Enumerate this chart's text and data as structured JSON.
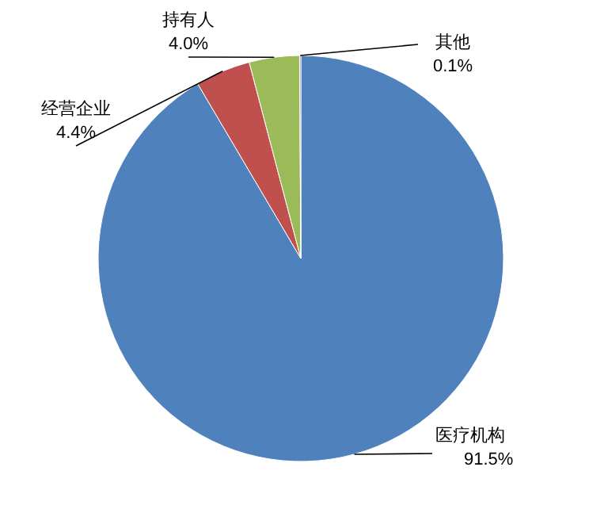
{
  "chart_data": {
    "type": "pie",
    "categories": [
      "医疗机构",
      "经营企业",
      "持有人",
      "其他"
    ],
    "values": [
      91.5,
      4.4,
      4.0,
      0.1
    ],
    "colors": [
      "#4f81bd",
      "#c0504d",
      "#9bbb59",
      "#8064a2"
    ],
    "value_labels": [
      "91.5%",
      "4.4%",
      "4.0%",
      "0.1%"
    ]
  }
}
